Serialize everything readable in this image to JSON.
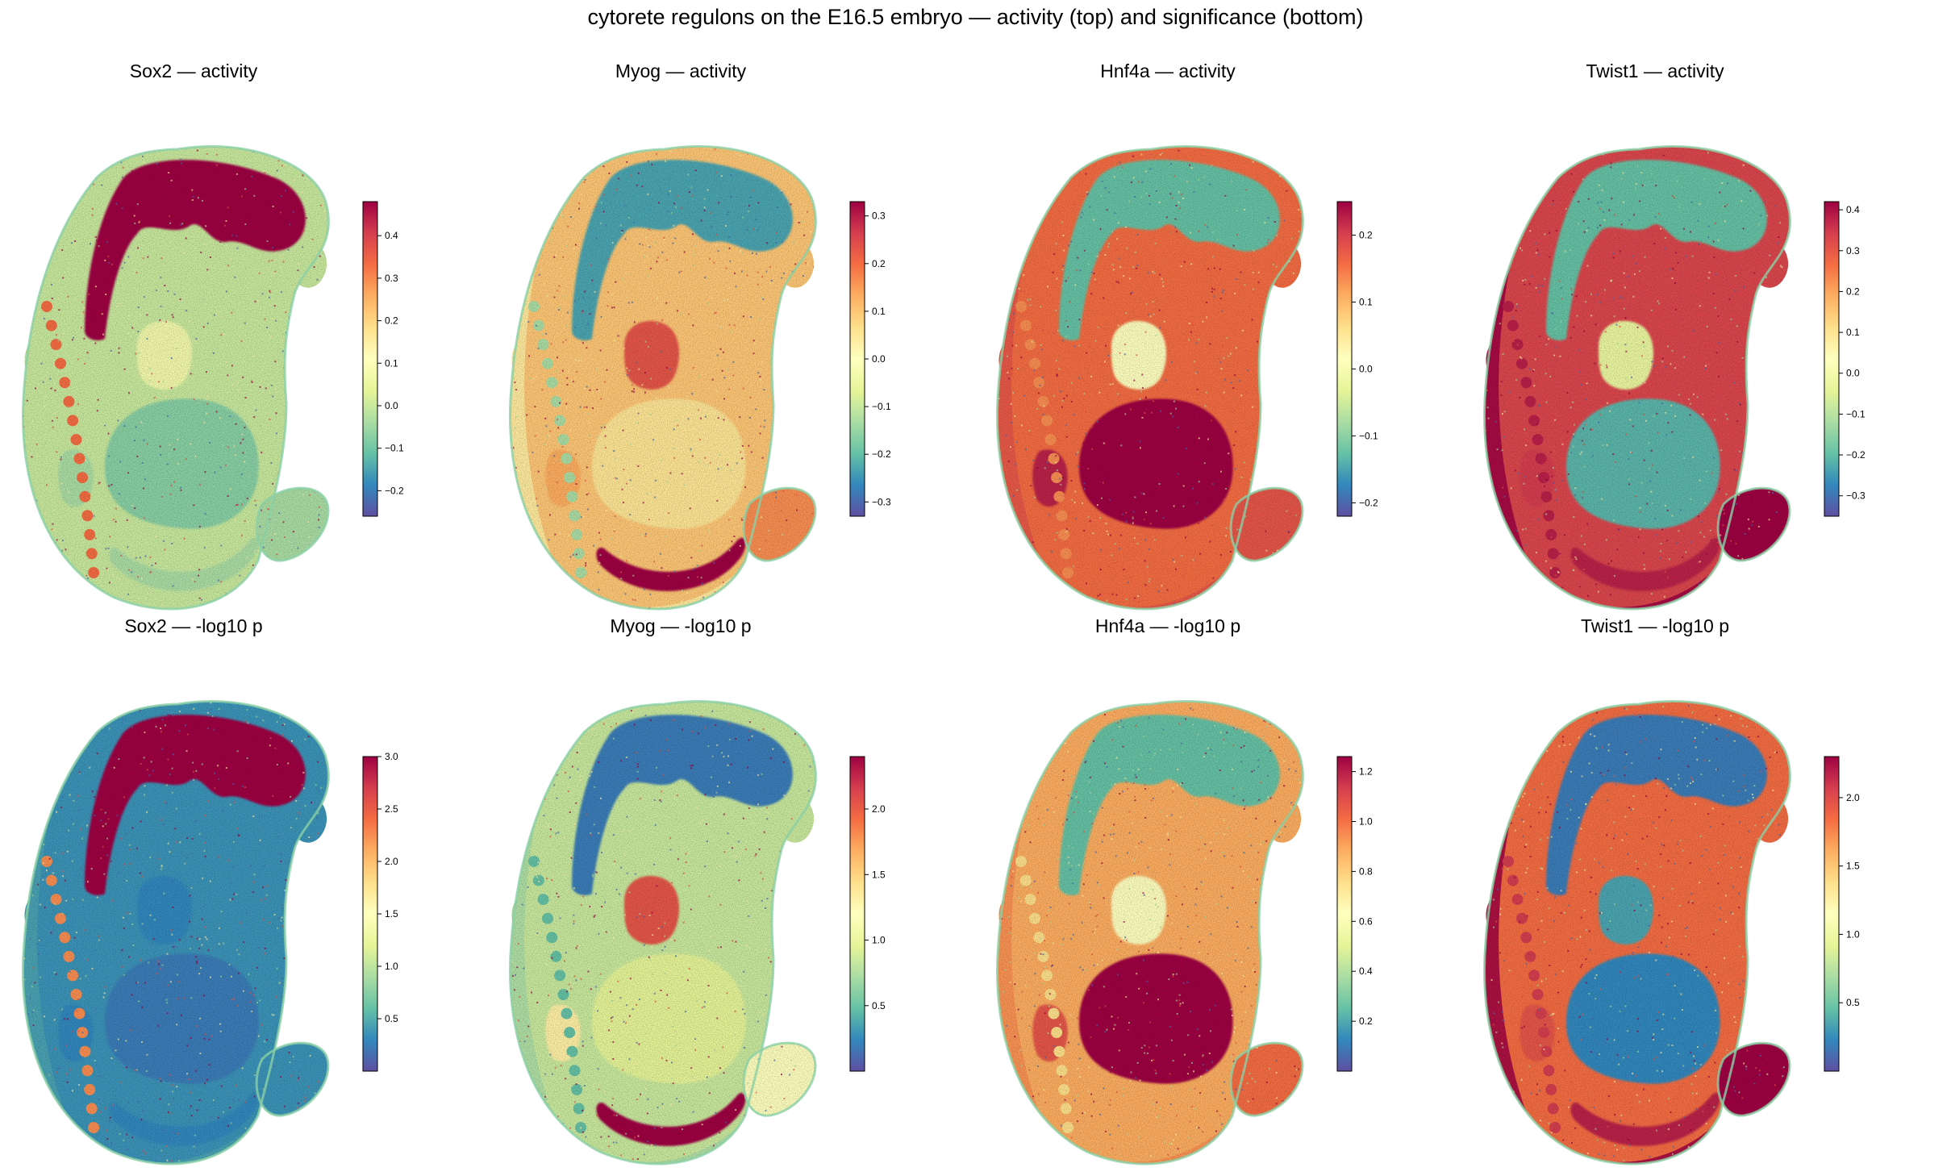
{
  "title": "cytorete regulons on the E16.5 embryo — activity (top) and significance (bottom)",
  "colormap": "Spectral_r",
  "colormap_stops": [
    "#5e4fa2",
    "#3288bd",
    "#66c2a5",
    "#abdda4",
    "#e6f598",
    "#ffffbf",
    "#fee08b",
    "#fdae61",
    "#f46d43",
    "#d53e4f",
    "#9e0142"
  ],
  "chart_data": [
    {
      "type": "heatmap",
      "title": "Sox2 — activity",
      "regulon": "Sox2",
      "metric": "activity",
      "colorbar_ticks": [
        "−0.2",
        "−0.1",
        "0.0",
        "0.1",
        "0.2",
        "0.3",
        "0.4"
      ],
      "colorbar_tick_values": [
        -0.2,
        -0.1,
        0.0,
        0.1,
        0.2,
        0.3,
        0.4
      ],
      "vmin": -0.26,
      "vmax": 0.48,
      "regions": {
        "brain": 1.0,
        "spinal": 0.8,
        "heart": 0.45,
        "liver": 0.25,
        "muscle": 0.3,
        "limb": 0.3,
        "skin": 0.35,
        "gut": 0.3,
        "body": 0.35
      }
    },
    {
      "type": "heatmap",
      "title": "Myog — activity",
      "regulon": "Myog",
      "metric": "activity",
      "colorbar_ticks": [
        "−0.3",
        "−0.2",
        "−0.1",
        "0.0",
        "0.1",
        "0.2",
        "0.3"
      ],
      "colorbar_tick_values": [
        -0.3,
        -0.2,
        -0.1,
        0.0,
        0.1,
        0.2,
        0.3
      ],
      "vmin": -0.33,
      "vmax": 0.33,
      "regions": {
        "brain": 0.15,
        "spinal": 0.3,
        "heart": 0.85,
        "liver": 0.58,
        "muscle": 1.0,
        "limb": 0.75,
        "skin": 0.55,
        "gut": 0.7,
        "body": 0.65
      }
    },
    {
      "type": "heatmap",
      "title": "Hnf4a — activity",
      "regulon": "Hnf4a",
      "metric": "activity",
      "colorbar_ticks": [
        "−0.2",
        "−0.1",
        "0.0",
        "0.1",
        "0.2"
      ],
      "colorbar_tick_values": [
        -0.2,
        -0.1,
        0.0,
        0.1,
        0.2
      ],
      "vmin": -0.22,
      "vmax": 0.25,
      "regions": {
        "brain": 0.2,
        "spinal": 0.75,
        "heart": 0.5,
        "liver": 1.0,
        "muscle": 0.8,
        "limb": 0.85,
        "skin": 0.85,
        "gut": 0.95,
        "body": 0.8
      }
    },
    {
      "type": "heatmap",
      "title": "Twist1 — activity",
      "regulon": "Twist1",
      "metric": "activity",
      "colorbar_ticks": [
        "−0.3",
        "−0.2",
        "−0.1",
        "0.0",
        "0.1",
        "0.2",
        "0.3",
        "0.4"
      ],
      "colorbar_tick_values": [
        -0.3,
        -0.2,
        -0.1,
        0.0,
        0.1,
        0.2,
        0.3,
        0.4
      ],
      "vmin": -0.35,
      "vmax": 0.42,
      "regions": {
        "brain": 0.2,
        "spinal": 0.95,
        "heart": 0.42,
        "liver": 0.18,
        "muscle": 0.95,
        "limb": 1.0,
        "skin": 1.0,
        "gut": 0.9,
        "body": 0.88
      }
    },
    {
      "type": "heatmap",
      "title": "Sox2 — -log10 p",
      "regulon": "Sox2",
      "metric": "-log10 p",
      "colorbar_ticks": [
        "0.5",
        "1.0",
        "1.5",
        "2.0",
        "2.5",
        "3.0"
      ],
      "colorbar_tick_values": [
        0.5,
        1.0,
        1.5,
        2.0,
        2.5,
        3.0
      ],
      "vmin": 0.0,
      "vmax": 3.0,
      "regions": {
        "brain": 1.0,
        "spinal": 0.75,
        "heart": 0.1,
        "liver": 0.08,
        "muscle": 0.1,
        "limb": 0.12,
        "skin": 0.15,
        "gut": 0.1,
        "body": 0.12
      }
    },
    {
      "type": "heatmap",
      "title": "Myog — -log10 p",
      "regulon": "Myog",
      "metric": "-log10 p",
      "colorbar_ticks": [
        "0.5",
        "1.0",
        "1.5",
        "2.0"
      ],
      "colorbar_tick_values": [
        0.5,
        1.0,
        1.5,
        2.0
      ],
      "vmin": 0.0,
      "vmax": 2.4,
      "regions": {
        "brain": 0.08,
        "spinal": 0.2,
        "heart": 0.85,
        "liver": 0.4,
        "muscle": 1.0,
        "limb": 0.5,
        "skin": 0.3,
        "gut": 0.55,
        "body": 0.35
      }
    },
    {
      "type": "heatmap",
      "title": "Hnf4a — -log10 p",
      "regulon": "Hnf4a",
      "metric": "-log10 p",
      "colorbar_ticks": [
        "0.2",
        "0.4",
        "0.6",
        "0.8",
        "1.0",
        "1.2"
      ],
      "colorbar_tick_values": [
        0.2,
        0.4,
        0.6,
        0.8,
        1.0,
        1.2
      ],
      "vmin": 0.0,
      "vmax": 1.26,
      "regions": {
        "brain": 0.2,
        "spinal": 0.6,
        "heart": 0.5,
        "liver": 1.0,
        "muscle": 0.7,
        "limb": 0.8,
        "skin": 0.75,
        "gut": 0.85,
        "body": 0.7
      }
    },
    {
      "type": "heatmap",
      "title": "Twist1 — -log10 p",
      "regulon": "Twist1",
      "metric": "-log10 p",
      "colorbar_ticks": [
        "0.5",
        "1.0",
        "1.5",
        "2.0"
      ],
      "colorbar_tick_values": [
        0.5,
        1.0,
        1.5,
        2.0
      ],
      "vmin": 0.0,
      "vmax": 2.3,
      "regions": {
        "brain": 0.08,
        "spinal": 0.9,
        "heart": 0.15,
        "liver": 0.1,
        "muscle": 0.95,
        "limb": 1.0,
        "skin": 1.0,
        "gut": 0.85,
        "body": 0.8
      }
    }
  ]
}
